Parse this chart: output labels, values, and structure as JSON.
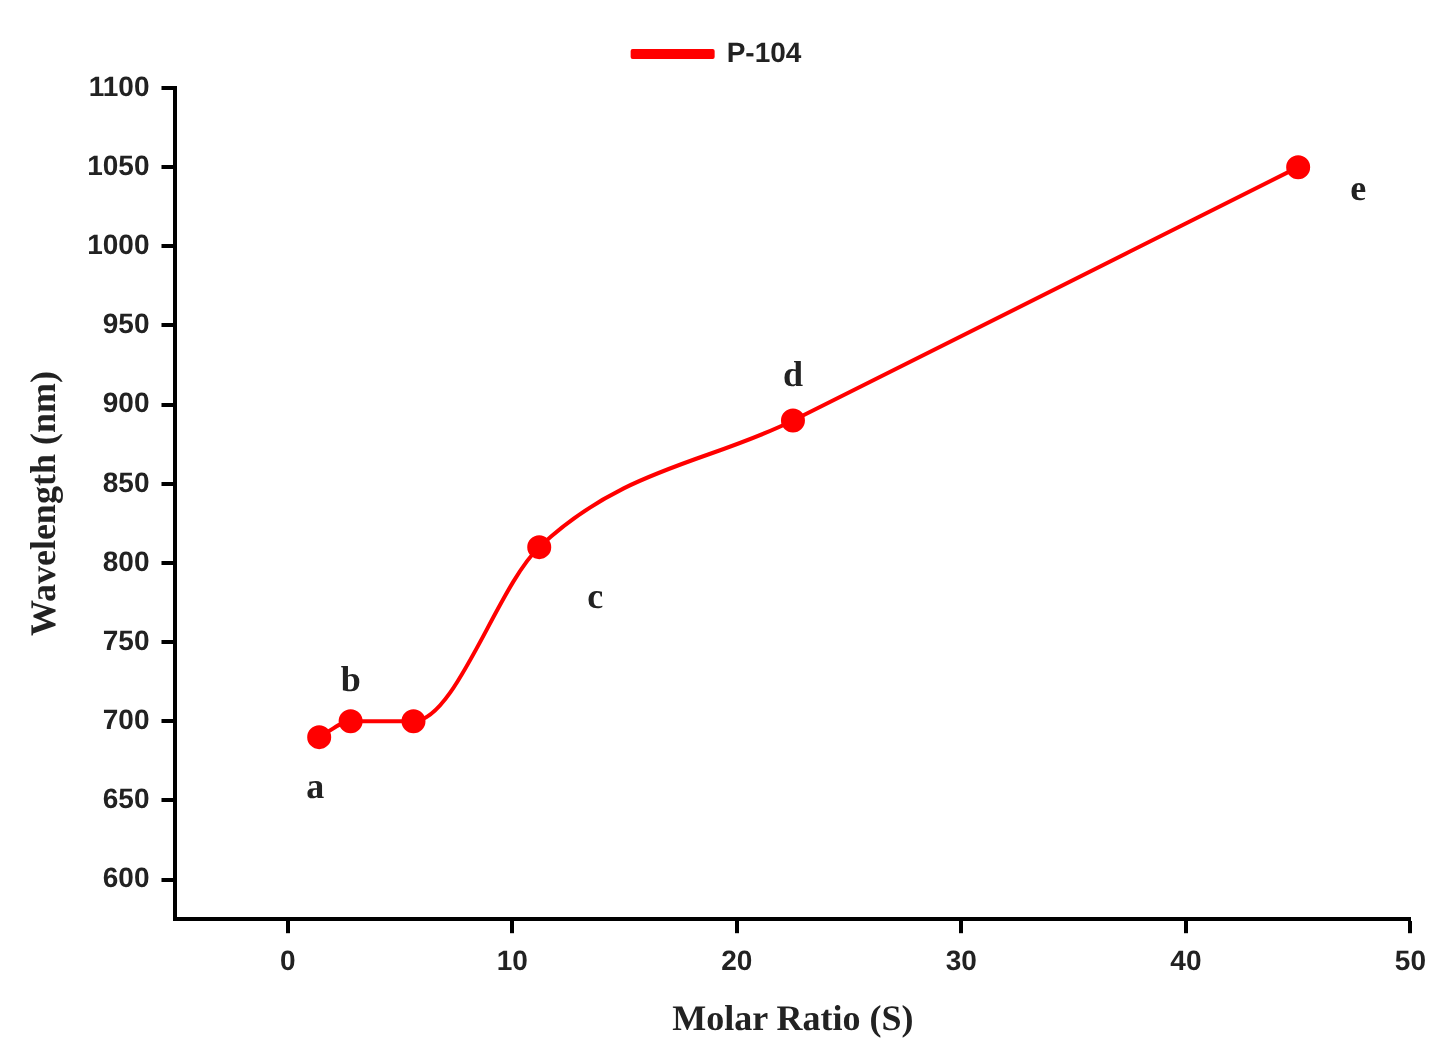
{
  "chart_data": {
    "type": "line",
    "xlabel": "Molar Ratio (S)",
    "ylabel": "Wavelength (nm)",
    "x": [
      1.4,
      2.8,
      5.6,
      11.2,
      22.5,
      45
    ],
    "series": [
      {
        "name": "P-104",
        "color": "#ff0000",
        "values": [
          690,
          700,
          700,
          810,
          890,
          1050
        ]
      }
    ],
    "xlim": [
      -5,
      50
    ],
    "xticks": [
      0,
      10,
      20,
      30,
      40,
      50
    ],
    "ylim": [
      575,
      1100
    ],
    "yticks": [
      600,
      650,
      700,
      750,
      800,
      850,
      900,
      950,
      1000,
      1050,
      1100
    ],
    "annotations": [
      {
        "text": "a",
        "x": 1.4,
        "y": 690
      },
      {
        "text": "b",
        "x": 2.8,
        "y": 700
      },
      {
        "text": "c",
        "x": 11.2,
        "y": 810
      },
      {
        "text": "d",
        "x": 22.5,
        "y": 890
      },
      {
        "text": "e",
        "x": 45,
        "y": 1050
      }
    ],
    "grid": false,
    "legend": "top",
    "marker": "circle",
    "line_style": "solid"
  }
}
